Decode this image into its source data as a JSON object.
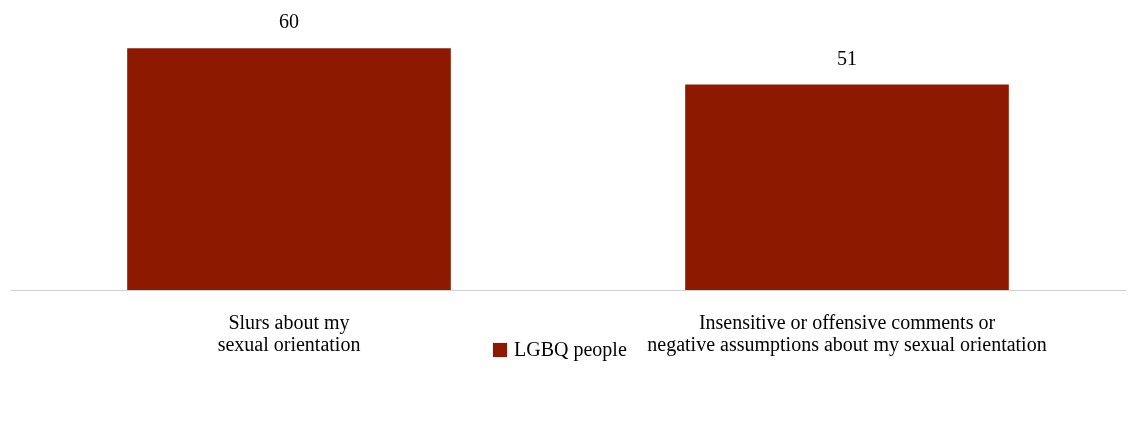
{
  "chart_data": {
    "type": "bar",
    "categories": [
      "Slurs about my\nsexual orientation",
      "Insensitive or offensive comments or\nnegative assumptions about my sexual orientation"
    ],
    "series": [
      {
        "name": "LGBQ people",
        "color": "#8d1a00",
        "values": [
          60,
          51
        ]
      }
    ],
    "data_labels": true,
    "legend": "bottom",
    "grid": false
  }
}
